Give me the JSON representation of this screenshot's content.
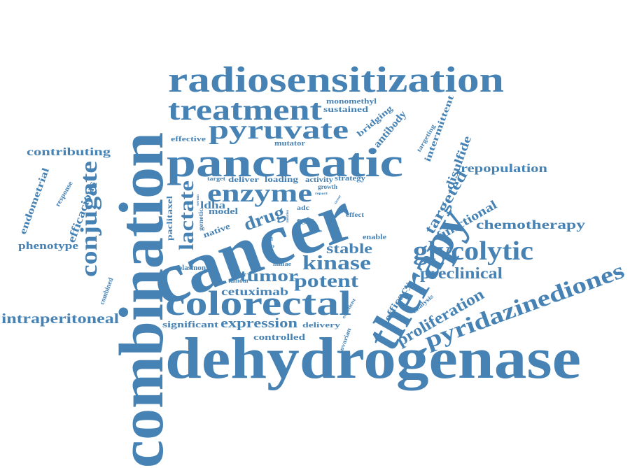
{
  "word_color": "#4682b4",
  "background_color": "#ffffff",
  "words": {
    "combination": "combination",
    "dehydrogenase": "dehydrogenase",
    "cancer": "cancer",
    "therapy": "therapy",
    "radiosensitization": "radiosensitization",
    "pancreatic": "pancreatic",
    "colorectal": "colorectal",
    "pyridazinediones": "pyridazinediones",
    "treatment": "treatment",
    "pyruvate": "pyruvate",
    "enzyme": "enzyme",
    "glycolytic": "glycolytic",
    "conjugate": "conjugate",
    "kinase": "kinase",
    "lactate": "lactate",
    "drug": "drug",
    "tumor": "tumor",
    "potent": "potent",
    "expression": "expression",
    "preclinical": "preclinical",
    "proliferation": "proliferation",
    "targeted": "targeted",
    "chemotherapy": "chemotherapy",
    "repopulation": "repopulation",
    "intraperitoneal": "intraperitoneal",
    "stable": "stable",
    "functional": "functional",
    "disulfide": "disulfide",
    "efficacious": "efficacious",
    "cetuximab": "cetuximab",
    "contributing": "contributing",
    "phenotype": "phenotype",
    "endometrial": "endometrial",
    "antibody": "antibody",
    "efficacy": "efficacy",
    "intermittent": "intermittent",
    "controlled": "controlled",
    "significant": "significant",
    "delivery": "delivery",
    "sustained": "sustained",
    "monomethyl": "monomethyl",
    "bridging": "bridging",
    "effective": "effective",
    "mutator": "mutator",
    "loading": "loading",
    "activity": "activity",
    "strategy": "strategy",
    "deliver": "deliver",
    "target": "target",
    "growth": "growth",
    "paclitaxel": "paclitaxel",
    "model": "model",
    "native": "native",
    "genetic": "genetic",
    "ldha": "ldha",
    "egfr": "egfr",
    "adc": "adc",
    "effect": "effect",
    "enable": "enable",
    "vitro": "vitro",
    "cell": "cell",
    "tepp": "tepp",
    "mmae": "mmae",
    "plasmon": "plasmon",
    "tumour": "tumour",
    "response": "response",
    "combined": "combined",
    "targeting": "targeting",
    "analysis": "analysis",
    "excellent": "excellent",
    "ovarian": "ovarian",
    "report": "report",
    "serum": "serum",
    "tissue": "tissue",
    "mutation": "mutation"
  }
}
